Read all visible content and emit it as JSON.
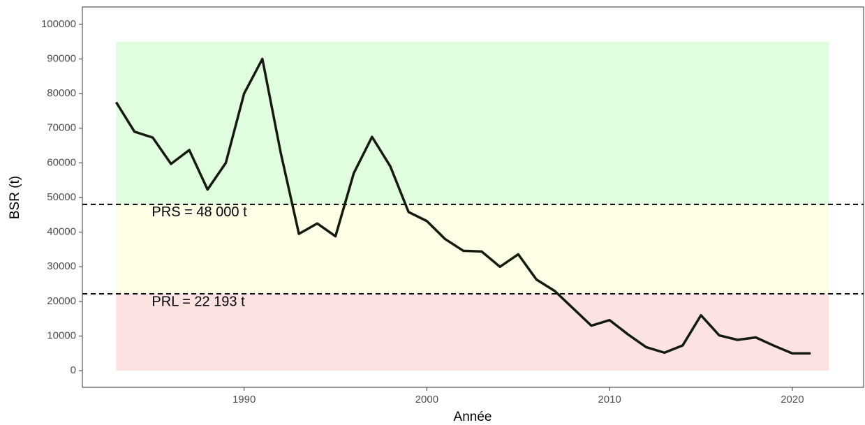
{
  "chart_data": {
    "type": "line",
    "x_label": "Année",
    "y_label": "BSR (t)",
    "x": [
      1983,
      1984,
      1985,
      1986,
      1987,
      1988,
      1989,
      1990,
      1991,
      1992,
      1993,
      1994,
      1995,
      1996,
      1997,
      1998,
      1999,
      2000,
      2001,
      2002,
      2003,
      2004,
      2005,
      2006,
      2007,
      2008,
      2009,
      2010,
      2011,
      2012,
      2013,
      2014,
      2015,
      2016,
      2017,
      2018,
      2019,
      2020,
      2021
    ],
    "series": [
      {
        "color": "#141a0c",
        "values": [
          77500,
          69000,
          67300,
          59700,
          63700,
          52300,
          60000,
          80000,
          90000,
          63000,
          39500,
          42500,
          38800,
          57000,
          67500,
          59000,
          45800,
          43200,
          38000,
          34600,
          34400,
          30000,
          33600,
          26300,
          23000,
          18000,
          13000,
          14600,
          10500,
          6800,
          5200,
          7300,
          16000,
          10200,
          8900,
          9600,
          7200,
          5000,
          5000
        ]
      }
    ],
    "xlim": [
      1981.15,
      2023.9
    ],
    "ylim": [
      -4800,
      105000
    ],
    "xticks": [
      1990,
      2000,
      2010,
      2020
    ],
    "yticks": [
      0,
      10000,
      20000,
      30000,
      40000,
      50000,
      60000,
      70000,
      80000,
      90000,
      100000
    ],
    "grid": false,
    "bands_x": [
      1983,
      2022
    ],
    "bands": [
      {
        "from": 48000,
        "to": 95000,
        "color": "#e0fde0"
      },
      {
        "from": 22193,
        "to": 48000,
        "color": "#fefee6"
      },
      {
        "from": 0,
        "to": 22193,
        "color": "#fde2e2"
      }
    ],
    "reference_lines": [
      {
        "value": 48000,
        "label": "PRS = 48 000 t"
      },
      {
        "value": 22193,
        "label": "PRL = 22 193 t"
      }
    ]
  }
}
